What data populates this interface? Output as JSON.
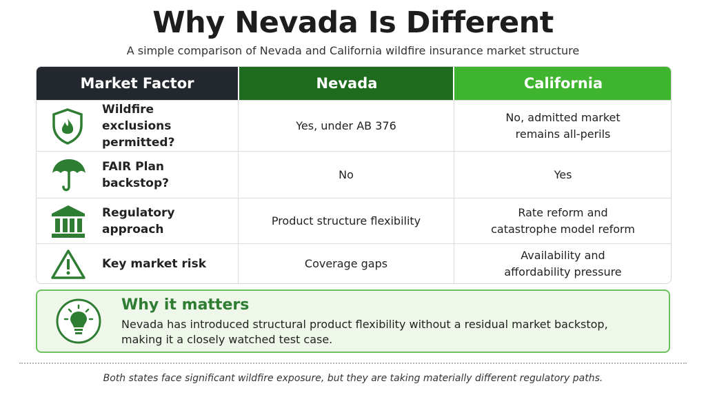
{
  "header": {
    "title": "Why Nevada Is Different",
    "subtitle": "A simple comparison of Nevada and California wildfire insurance market structure"
  },
  "table": {
    "columns": [
      "Market Factor",
      "Nevada",
      "California"
    ],
    "rows": [
      [
        "Wildfire exclusions permitted?",
        "Yes, under AB 376",
        "No, admitted market remains all-perils"
      ],
      [
        "FAIR Plan backstop?",
        "No",
        "Yes"
      ],
      [
        "Regulatory approach",
        "Product structure flexibility",
        "Rate reform and catastrophe model reform"
      ],
      [
        "Key market risk",
        "Coverage gaps",
        "Availability and affordability pressure"
      ]
    ]
  },
  "callout": {
    "title": "Why it matters",
    "body": "Nevada has introduced structural product flexibility without a residual market backstop, making it a closely watched test case."
  },
  "footer": "Both states face significant wildfire exposure, but they are taking materially different regulatory paths."
}
